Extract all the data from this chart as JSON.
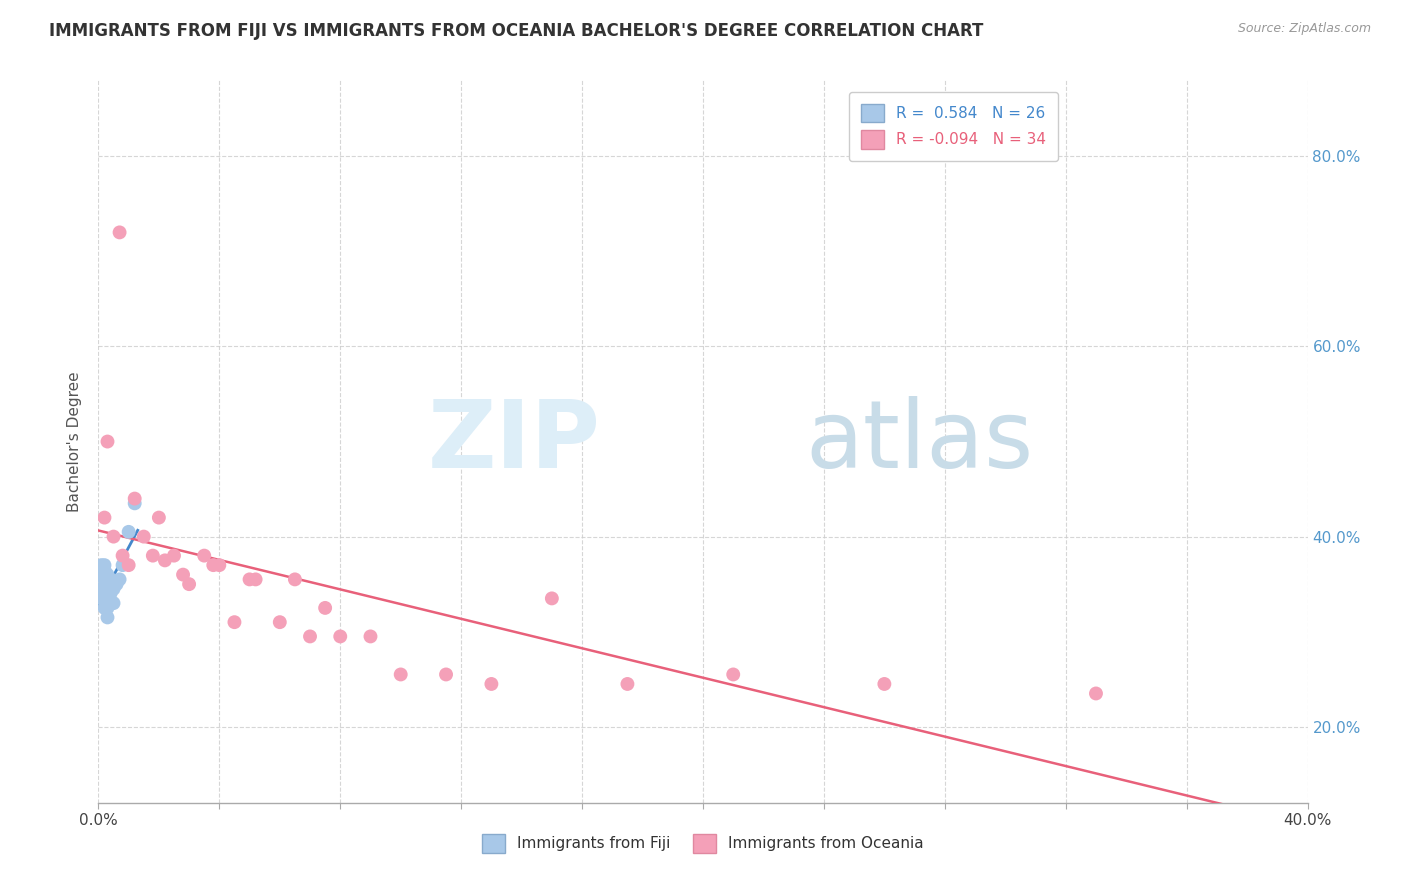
{
  "title": "IMMIGRANTS FROM FIJI VS IMMIGRANTS FROM OCEANIA BACHELOR'S DEGREE CORRELATION CHART",
  "source": "Source: ZipAtlas.com",
  "ylabel": "Bachelor's Degree",
  "r_fiji": 0.584,
  "n_fiji": 26,
  "r_oceania": -0.094,
  "n_oceania": 34,
  "fiji_color": "#a8c8e8",
  "oceania_color": "#f4a0b8",
  "fiji_line_color": "#4488cc",
  "oceania_line_color": "#e8607a",
  "background_color": "#ffffff",
  "grid_color": "#cccccc",
  "fiji_x": [
    0.001,
    0.001,
    0.001,
    0.002,
    0.002,
    0.002,
    0.002,
    0.002,
    0.002,
    0.003,
    0.003,
    0.003,
    0.003,
    0.003,
    0.003,
    0.004,
    0.004,
    0.004,
    0.004,
    0.005,
    0.005,
    0.006,
    0.007,
    0.008,
    0.01,
    0.012
  ],
  "fiji_y": [
    0.335,
    0.345,
    0.37,
    0.325,
    0.34,
    0.355,
    0.36,
    0.365,
    0.37,
    0.315,
    0.325,
    0.335,
    0.345,
    0.355,
    0.36,
    0.33,
    0.34,
    0.35,
    0.355,
    0.33,
    0.345,
    0.35,
    0.355,
    0.37,
    0.405,
    0.435
  ],
  "oceania_x": [
    0.002,
    0.003,
    0.005,
    0.007,
    0.008,
    0.01,
    0.012,
    0.015,
    0.018,
    0.02,
    0.022,
    0.025,
    0.028,
    0.03,
    0.035,
    0.038,
    0.04,
    0.045,
    0.05,
    0.052,
    0.06,
    0.065,
    0.07,
    0.075,
    0.08,
    0.09,
    0.1,
    0.115,
    0.13,
    0.15,
    0.175,
    0.21,
    0.26,
    0.33
  ],
  "oceania_y": [
    0.42,
    0.5,
    0.4,
    0.72,
    0.38,
    0.37,
    0.44,
    0.4,
    0.38,
    0.42,
    0.375,
    0.38,
    0.36,
    0.35,
    0.38,
    0.37,
    0.37,
    0.31,
    0.355,
    0.355,
    0.31,
    0.355,
    0.295,
    0.325,
    0.295,
    0.295,
    0.255,
    0.255,
    0.245,
    0.335,
    0.245,
    0.255,
    0.245,
    0.235
  ],
  "xlim": [
    0.0,
    0.4
  ],
  "ylim": [
    0.12,
    0.88
  ],
  "right_yticks": [
    0.2,
    0.4,
    0.6,
    0.8
  ],
  "right_yticklabels": [
    "20.0%",
    "40.0%",
    "60.0%",
    "80.0%"
  ],
  "fiji_trend_x": [
    0.0,
    0.013
  ],
  "oceania_trend_x": [
    0.0,
    0.4
  ],
  "watermark_zip_color": "#ddeef8",
  "watermark_atlas_color": "#c8dce8",
  "legend_label_fiji": "Immigrants from Fiji",
  "legend_label_oceania": "Immigrants from Oceania",
  "title_fontsize": 12,
  "axis_fontsize": 11,
  "legend_fontsize": 11,
  "source_fontsize": 9
}
